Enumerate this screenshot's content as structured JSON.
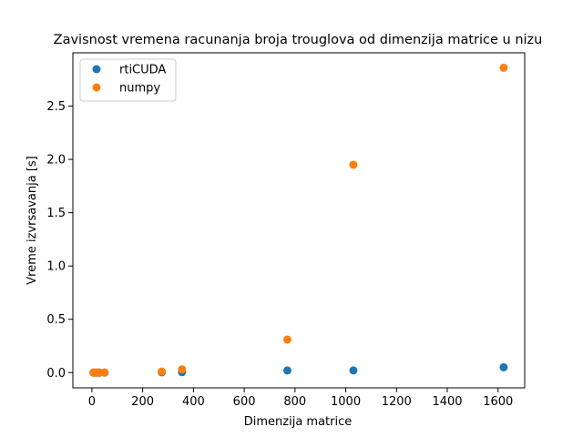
{
  "chart_data": {
    "type": "scatter",
    "title": "Zavisnost vremena racunanja broja trouglova od dimenzija matrice u nizu",
    "xlabel": "Dimenzija matrice",
    "ylabel": "Vreme izvrsavanja [s]",
    "xlim": [
      -75,
      1705
    ],
    "ylim": [
      -0.143,
      3.0
    ],
    "xticks": [
      0,
      200,
      400,
      600,
      800,
      1000,
      1200,
      1400,
      1600
    ],
    "xtick_labels": [
      "0",
      "200",
      "400",
      "600",
      "800",
      "1000",
      "1200",
      "1400",
      "1600"
    ],
    "yticks": [
      0.0,
      0.5,
      1.0,
      1.5,
      2.0,
      2.5
    ],
    "ytick_labels": [
      "0.0",
      "0.5",
      "1.0",
      "1.5",
      "2.0",
      "2.5"
    ],
    "grid": false,
    "legend_position": "top-left",
    "series": [
      {
        "name": "rtiCUDA",
        "color": "#1f77b4",
        "points": [
          {
            "x": 6,
            "y": 0.0
          },
          {
            "x": 10,
            "y": 0.0
          },
          {
            "x": 18,
            "y": 0.0
          },
          {
            "x": 25,
            "y": 0.0
          },
          {
            "x": 30,
            "y": 0.0
          },
          {
            "x": 50,
            "y": 0.0
          },
          {
            "x": 275,
            "y": 0.003
          },
          {
            "x": 355,
            "y": 0.004
          },
          {
            "x": 770,
            "y": 0.02
          },
          {
            "x": 1030,
            "y": 0.02
          },
          {
            "x": 1622,
            "y": 0.05
          }
        ]
      },
      {
        "name": "numpy",
        "color": "#ff7f0e",
        "points": [
          {
            "x": 6,
            "y": 0.0
          },
          {
            "x": 10,
            "y": 0.0
          },
          {
            "x": 18,
            "y": 0.0
          },
          {
            "x": 25,
            "y": 0.0
          },
          {
            "x": 30,
            "y": 0.0
          },
          {
            "x": 50,
            "y": 0.001
          },
          {
            "x": 275,
            "y": 0.01
          },
          {
            "x": 355,
            "y": 0.03
          },
          {
            "x": 770,
            "y": 0.31
          },
          {
            "x": 1030,
            "y": 1.95
          },
          {
            "x": 1622,
            "y": 2.86
          }
        ]
      }
    ]
  }
}
